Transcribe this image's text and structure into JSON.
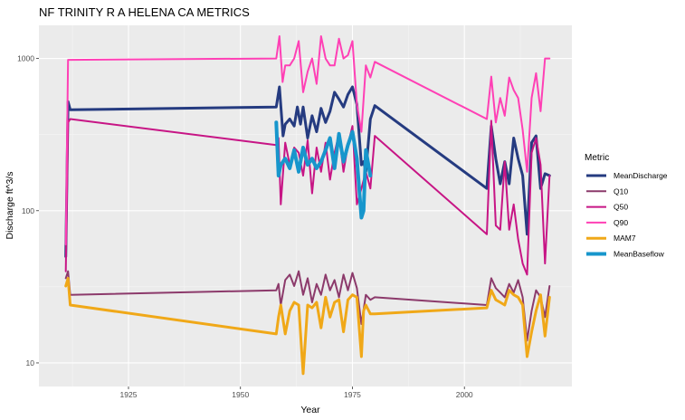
{
  "chart_data": {
    "type": "line",
    "title": "NF TRINITY R A HELENA CA  METRICS",
    "xlabel": "Year",
    "ylabel": "Discharge ft^3/s",
    "yscale": "log",
    "xlim": [
      1905,
      2024
    ],
    "ylim": [
      7,
      1650
    ],
    "x_ticks": [
      1925,
      1950,
      1975,
      2000
    ],
    "y_ticks": [
      10,
      100,
      1000
    ],
    "grid": true,
    "legend_title": "Metric",
    "legend_position": "right",
    "background": "#ebebeb",
    "series": [
      {
        "name": "MeanDischarge",
        "color": "#253b80",
        "width": 3,
        "x": [
          1911,
          1911.5,
          1912,
          1958,
          1958.7,
          1959.5,
          1960,
          1961,
          1962,
          1962.7,
          1963.4,
          1964,
          1965,
          1966,
          1967,
          1968,
          1969,
          1970,
          1971,
          1972,
          1973,
          1974,
          1975,
          1976,
          1977,
          1977.5,
          1978,
          1979,
          1980,
          2005,
          2006,
          2007,
          2008,
          2009,
          2010,
          2011,
          2012,
          2013,
          2014,
          2015,
          2016,
          2017,
          2018,
          2019
        ],
        "y": [
          50,
          520,
          460,
          480,
          650,
          310,
          370,
          400,
          360,
          480,
          370,
          480,
          300,
          420,
          330,
          470,
          380,
          450,
          600,
          540,
          480,
          580,
          650,
          500,
          200,
          210,
          180,
          400,
          490,
          140,
          360,
          220,
          150,
          210,
          150,
          300,
          220,
          170,
          70,
          280,
          310,
          140,
          175,
          170
        ]
      },
      {
        "name": "Q10",
        "color": "#8c3a6b",
        "width": 2,
        "x": [
          1911,
          1911.5,
          1912,
          1958,
          1958.5,
          1959,
          1960,
          1961,
          1962,
          1963,
          1964,
          1965,
          1966,
          1967,
          1968,
          1969,
          1970,
          1971,
          1972,
          1973,
          1974,
          1975,
          1976,
          1977,
          1978,
          1979,
          1980,
          2005,
          2006,
          2007,
          2008,
          2009,
          2010,
          2011,
          2012,
          2013,
          2014,
          2015,
          2016,
          2017,
          2018,
          2019
        ],
        "y": [
          36,
          40,
          28,
          30,
          33,
          24,
          35,
          38,
          32,
          40,
          28,
          36,
          25,
          33,
          28,
          38,
          30,
          35,
          27,
          38,
          30,
          39,
          31,
          18,
          28,
          26,
          27,
          24,
          36,
          31,
          29,
          27,
          33,
          29,
          35,
          27,
          14,
          22,
          30,
          27,
          20,
          32
        ]
      },
      {
        "name": "Q50",
        "color": "#c71585",
        "width": 2,
        "x": [
          1911,
          1911.5,
          1912,
          1958,
          1958.5,
          1959,
          1960,
          1961,
          1962,
          1963,
          1964,
          1965,
          1966,
          1967,
          1968,
          1969,
          1970,
          1971,
          1972,
          1973,
          1974,
          1975,
          1976,
          1977,
          1978,
          1979,
          1980,
          2005,
          2006,
          2007,
          2008,
          2009,
          2010,
          2011,
          2012,
          2013,
          2014,
          2015,
          2016,
          2017,
          2018,
          2019
        ],
        "y": [
          40,
          380,
          400,
          270,
          300,
          110,
          280,
          200,
          260,
          240,
          170,
          290,
          130,
          260,
          180,
          280,
          160,
          240,
          320,
          180,
          270,
          360,
          110,
          140,
          180,
          140,
          310,
          70,
          390,
          80,
          75,
          210,
          75,
          110,
          65,
          45,
          38,
          240,
          300,
          200,
          45,
          170
        ]
      },
      {
        "name": "Q90",
        "color": "#ff40b5",
        "width": 2,
        "x": [
          1911,
          1911.5,
          1912,
          1958,
          1958.7,
          1959.4,
          1960,
          1961,
          1962,
          1963,
          1964,
          1965,
          1966,
          1967,
          1968,
          1969,
          1970,
          1971,
          1972,
          1973,
          1974,
          1975,
          1976,
          1977,
          1978,
          1979,
          1980,
          2005,
          2006,
          2007,
          2008,
          2009,
          2010,
          2011,
          2012,
          2013,
          2014,
          2015,
          2016,
          2017,
          2018,
          2019
        ],
        "y": [
          60,
          980,
          980,
          1000,
          1400,
          700,
          900,
          900,
          1000,
          1300,
          600,
          820,
          1000,
          680,
          1400,
          1000,
          900,
          900,
          1350,
          1000,
          1050,
          1300,
          500,
          330,
          900,
          750,
          950,
          400,
          760,
          380,
          550,
          420,
          750,
          620,
          550,
          340,
          180,
          550,
          800,
          450,
          1000,
          1000
        ]
      },
      {
        "name": "MAM7",
        "color": "#f0a818",
        "width": 3,
        "x": [
          1911,
          1911.5,
          1912,
          1958,
          1958.5,
          1959,
          1960,
          1961,
          1962,
          1963,
          1964,
          1965,
          1966,
          1967,
          1968,
          1969,
          1970,
          1971,
          1972,
          1973,
          1974,
          1975,
          1976,
          1977,
          1977.5,
          1978,
          1979,
          1980,
          2005,
          2006,
          2007,
          2008,
          2009,
          2010,
          2011,
          2012,
          2013,
          2014,
          2015,
          2016,
          2017,
          2018,
          2019
        ],
        "y": [
          32,
          36,
          24,
          15.5,
          20,
          24,
          15.5,
          22,
          25,
          24,
          8.5,
          24,
          23,
          25,
          17,
          27,
          20,
          25,
          26,
          16,
          26,
          28,
          27,
          11,
          22,
          24,
          21,
          21,
          23,
          30,
          26,
          25,
          24,
          30,
          28,
          27,
          24,
          11,
          16,
          22,
          28,
          15,
          27
        ]
      },
      {
        "name": "MeanBaseflow",
        "color": "#1796cc",
        "width": 4,
        "x": [
          1958,
          1958.5,
          1959,
          1960,
          1961,
          1962,
          1963,
          1964,
          1965,
          1966,
          1967,
          1968,
          1969,
          1970,
          1971,
          1972,
          1973,
          1974,
          1975,
          1976,
          1977,
          1977.5,
          1978,
          1979
        ],
        "y": [
          380,
          170,
          200,
          220,
          190,
          250,
          180,
          260,
          200,
          220,
          190,
          210,
          250,
          300,
          190,
          320,
          210,
          270,
          330,
          220,
          90,
          100,
          250,
          170
        ]
      }
    ]
  }
}
